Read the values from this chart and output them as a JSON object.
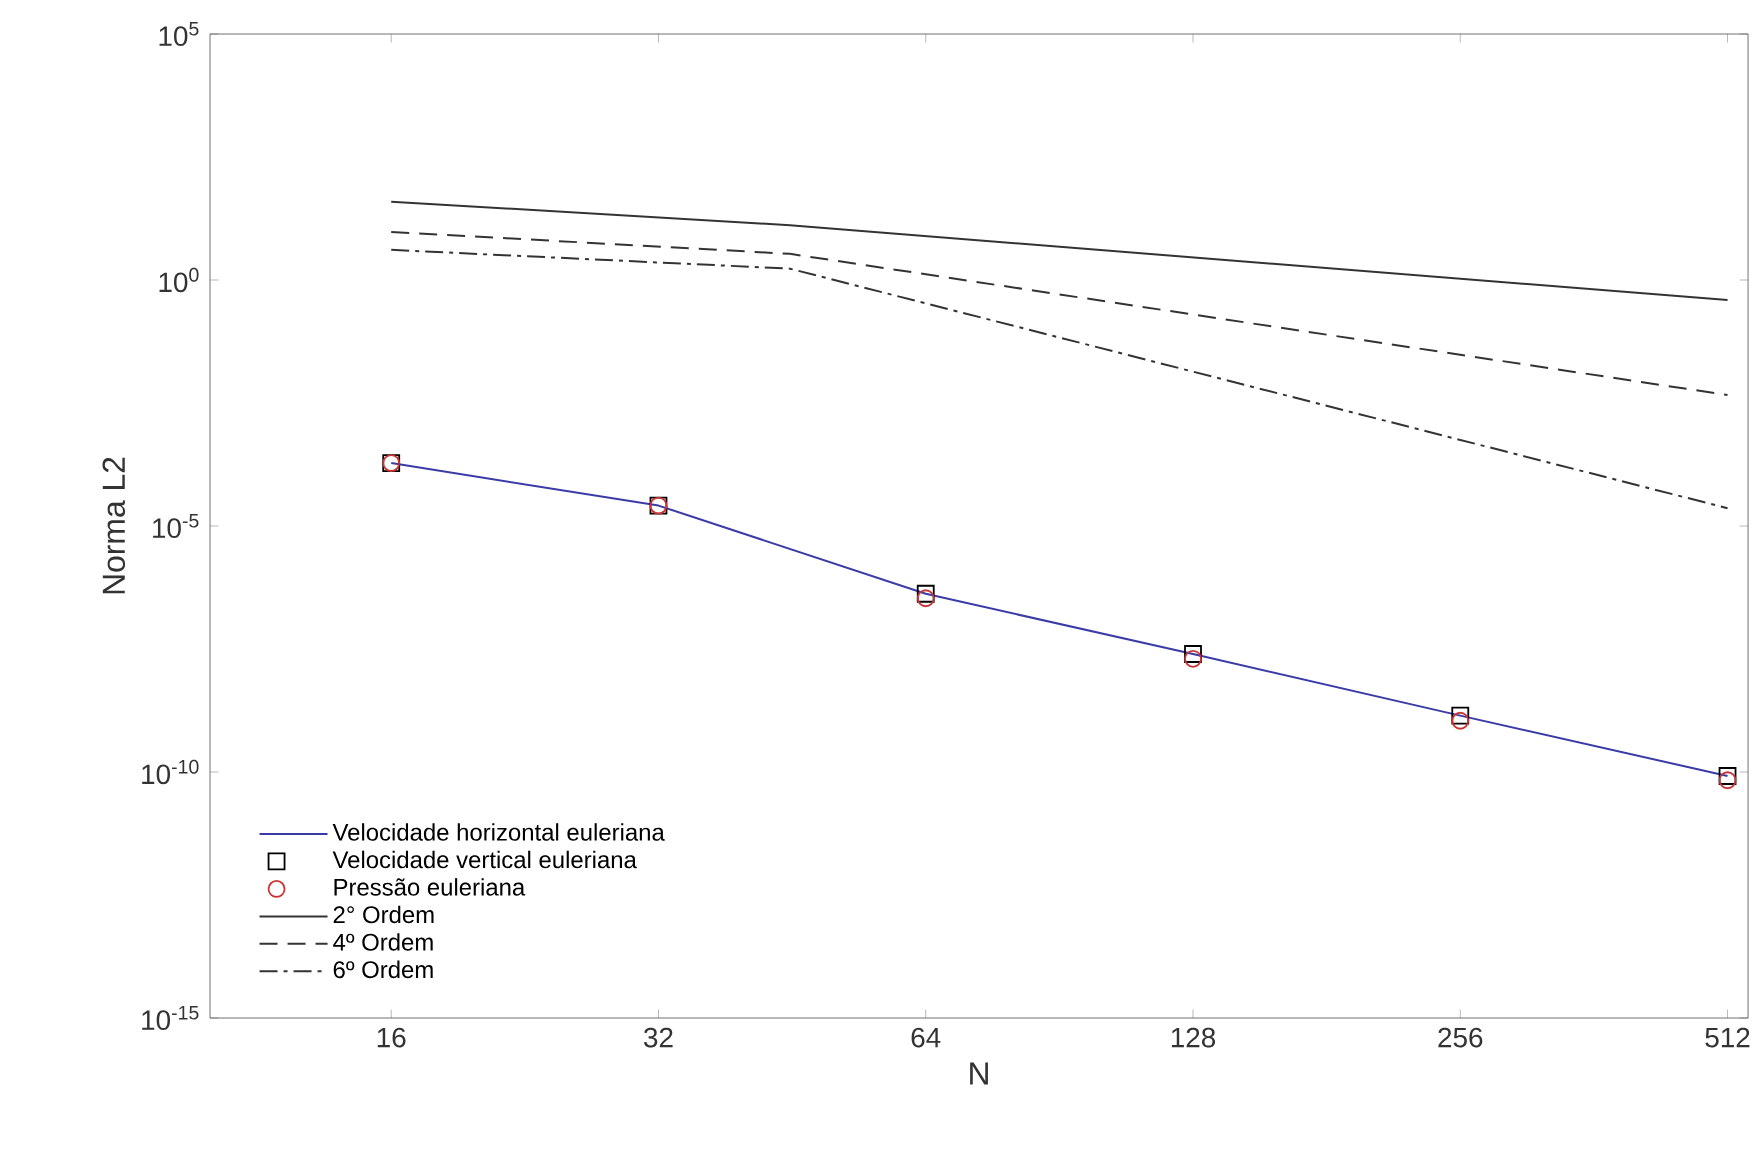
{
  "chart_data": {
    "type": "line",
    "xlabel": "N",
    "ylabel": "Norma L2",
    "log": "xy",
    "legend": "bottom left",
    "grid": false,
    "xlim": [
      10,
      540
    ],
    "ylim": [
      1e-15,
      100000.0
    ],
    "xticks": [
      16,
      32,
      64,
      128,
      256,
      512
    ],
    "yticks": [
      {
        "value": 1e-15,
        "label": "10$^{-15}$"
      },
      {
        "value": 1e-10,
        "label": "10$^{-10}$"
      },
      {
        "value": 1e-05,
        "label": "10$^{-5}$"
      },
      {
        "value": 1,
        "label": "10$^{0}$"
      },
      {
        "value": 100000.0,
        "label": "10$^{5}$"
      }
    ],
    "x": [
      16,
      32,
      64,
      128,
      256,
      512
    ],
    "series": [
      {
        "name": "Velocidade horizontal euleriana",
        "color": "#3b3ba8",
        "line_style": "solid",
        "marker": "none",
        "values": [
          0.00019,
          2.6e-05,
          4.2e-07,
          2.5e-08,
          1.4e-09,
          8.3e-11
        ]
      },
      {
        "name": "Velocidade vertical euleriana",
        "type": "scatter",
        "color": "#000000",
        "marker": "square",
        "values": [
          0.00019,
          2.6e-05,
          4.2e-07,
          2.5e-08,
          1.4e-09,
          8.3e-11
        ]
      },
      {
        "name": "Pressão euleriana",
        "type": "scatter",
        "color": "#cc3333",
        "marker": "circle",
        "values": [
          0.00019,
          2.6e-05,
          3.4e-07,
          2e-08,
          1.1e-09,
          6.8e-11
        ]
      },
      {
        "name": "2° Ordem",
        "color": "#333333",
        "line_style": "solid",
        "marker": "none",
        "x": [
          16,
          45,
          512
        ],
        "values": [
          39,
          13,
          0.39
        ]
      },
      {
        "name": "4º Ordem",
        "color": "#333333",
        "line_style": "dashed",
        "marker": "none",
        "x": [
          16,
          45,
          512
        ],
        "values": [
          9.5,
          3.4,
          0.0046
        ]
      },
      {
        "name": "6º Ordem",
        "color": "#333333",
        "line_style": "dashdot",
        "marker": "none",
        "x": [
          16,
          45,
          512
        ],
        "values": [
          4.1,
          1.7,
          2.3e-05
        ]
      }
    ]
  }
}
